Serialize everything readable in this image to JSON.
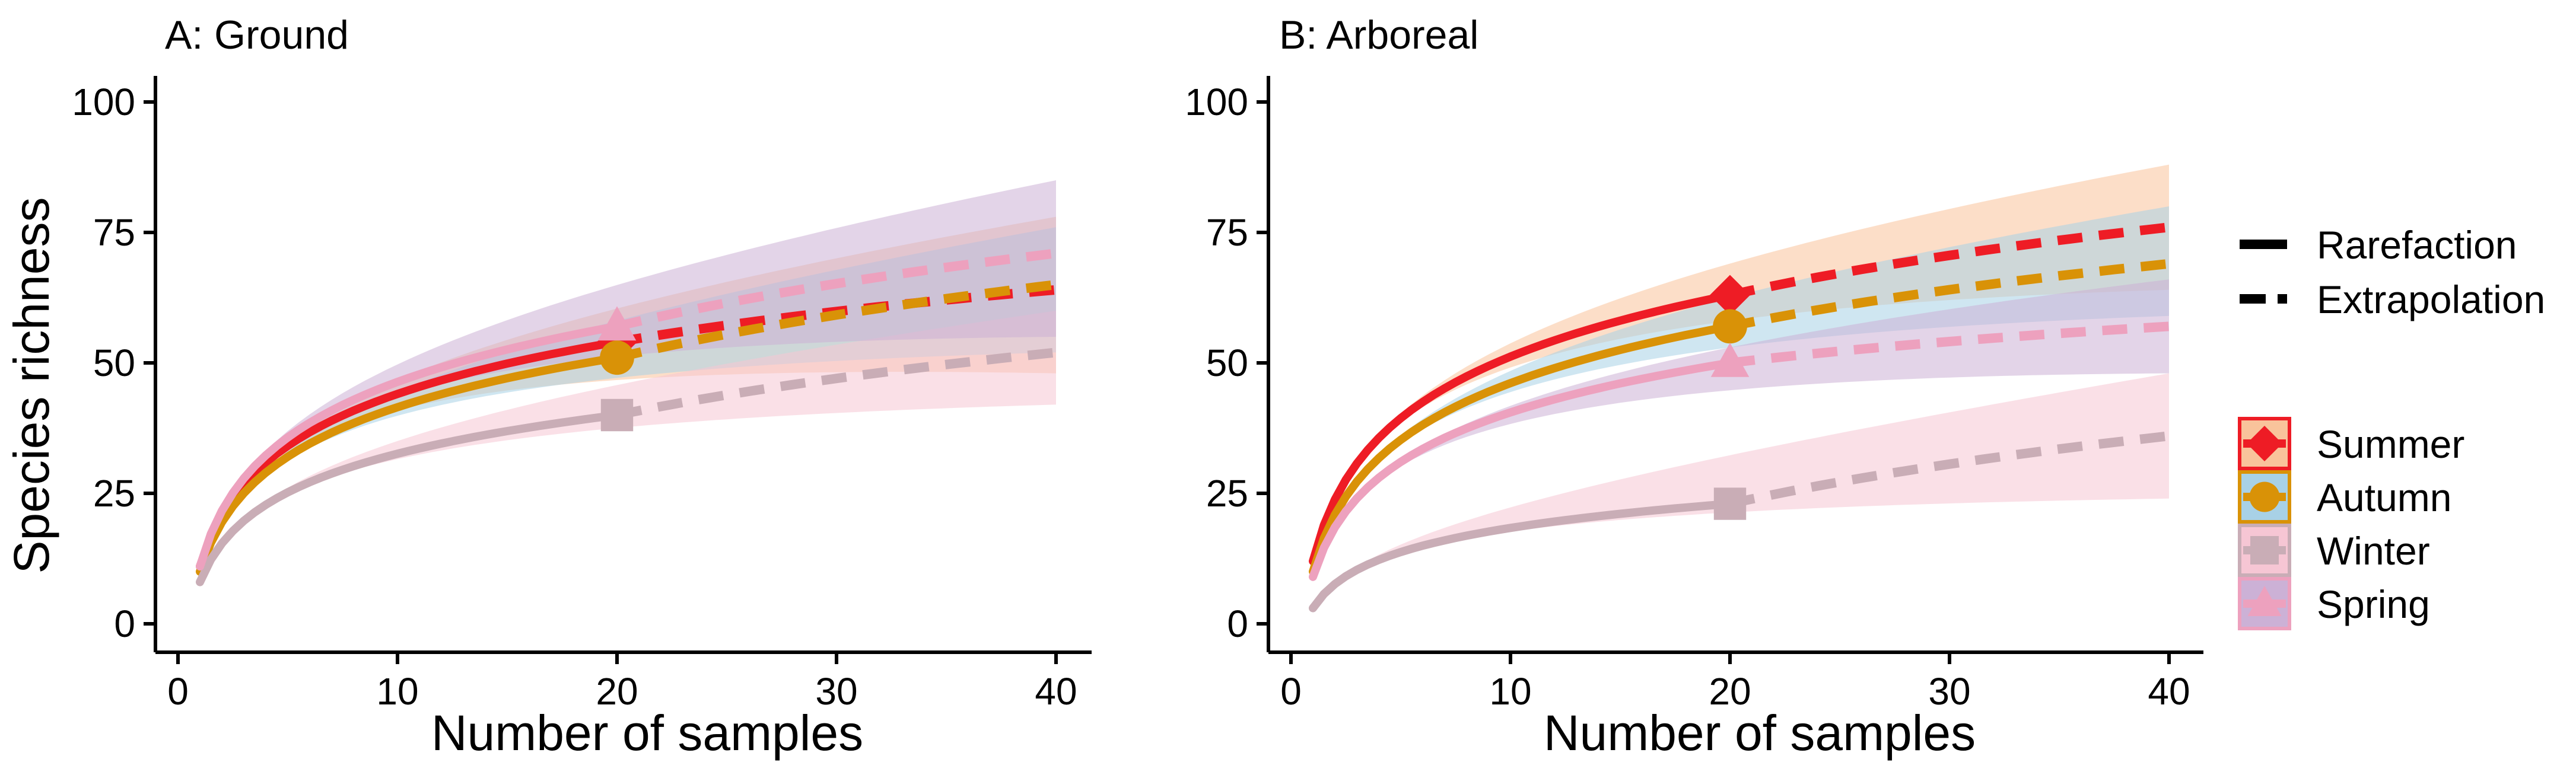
{
  "figure": {
    "y_axis_label": "Species richness"
  },
  "legend": {
    "method": [
      {
        "label": "Rarefaction",
        "dash": "solid"
      },
      {
        "label": "Extrapolation",
        "dash": "dashed"
      }
    ],
    "seasons": [
      {
        "label": "Summer",
        "color": "#ee1c25",
        "fill": "#f9c39b",
        "shape": "diamond"
      },
      {
        "label": "Autumn",
        "color": "#d99207",
        "fill": "#a8d1e6",
        "shape": "circle"
      },
      {
        "label": "Winter",
        "color": "#c9adb6",
        "fill": "#f6c6d4",
        "shape": "square"
      },
      {
        "label": "Spring",
        "color": "#eda1be",
        "fill": "#ccb1d6",
        "shape": "triangle"
      }
    ]
  },
  "chart_data": [
    {
      "type": "line",
      "title": "A: Ground",
      "xlabel": "Number of samples",
      "ylabel": "Species richness",
      "xlim": [
        0,
        42
      ],
      "ylim": [
        -5,
        105
      ],
      "xticks": [
        0,
        10,
        20,
        30,
        40
      ],
      "yticks": [
        0,
        25,
        50,
        75,
        100
      ],
      "observed_samples": 20,
      "series": [
        {
          "name": "Summer",
          "start": 11,
          "observed": 54,
          "end": 64,
          "lower_end": 48,
          "upper_end": 78
        },
        {
          "name": "Autumn",
          "start": 10,
          "observed": 51,
          "end": 65,
          "lower_end": 52,
          "upper_end": 76
        },
        {
          "name": "Winter",
          "start": 8,
          "observed": 40,
          "end": 52,
          "lower_end": 42,
          "upper_end": 60
        },
        {
          "name": "Spring",
          "start": 11,
          "observed": 57,
          "end": 71,
          "lower_end": 55,
          "upper_end": 85
        }
      ]
    },
    {
      "type": "line",
      "title": "B: Arboreal",
      "xlabel": "Number of samples",
      "ylabel": "Species richness",
      "xlim": [
        0,
        42
      ],
      "ylim": [
        -5,
        105
      ],
      "xticks": [
        0,
        10,
        20,
        30,
        40
      ],
      "yticks": [
        0,
        25,
        50,
        75,
        100
      ],
      "observed_samples": 20,
      "series": [
        {
          "name": "Summer",
          "start": 12,
          "observed": 63,
          "end": 76,
          "lower_end": 64,
          "upper_end": 88
        },
        {
          "name": "Autumn",
          "start": 10,
          "observed": 57,
          "end": 69,
          "lower_end": 59,
          "upper_end": 80
        },
        {
          "name": "Winter",
          "start": 3,
          "observed": 23,
          "end": 36,
          "lower_end": 24,
          "upper_end": 48
        },
        {
          "name": "Spring",
          "start": 9,
          "observed": 50,
          "end": 57,
          "lower_end": 48,
          "upper_end": 66
        }
      ]
    }
  ]
}
